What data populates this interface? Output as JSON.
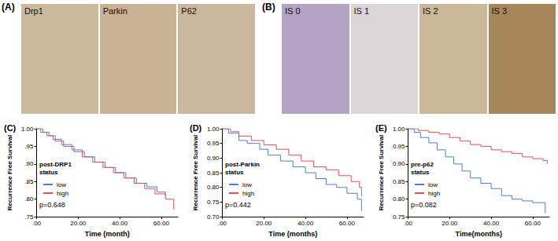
{
  "image_panels": [
    {
      "label": "(A)",
      "images": [
        "Drp1",
        "Parkin",
        "P62"
      ]
    },
    {
      "label": "(B)",
      "images": [
        "IS 0",
        "IS 1",
        "IS 2",
        "IS 3"
      ]
    }
  ],
  "chart_data": [
    {
      "type": "line",
      "label": "(C)",
      "x_label": "Time (month)",
      "y_label": "Recurrence Free Survival",
      "legend_title": [
        "post-DRP1",
        "status"
      ],
      "annotations": [
        "p=0.648"
      ],
      "legend": "left",
      "xlim": [
        0,
        68
      ],
      "xticks": [
        {
          "value": 0,
          "label": ".00"
        },
        {
          "value": 20,
          "label": "20.00"
        },
        {
          "value": 40,
          "label": "40.00"
        },
        {
          "value": 60,
          "label": "60.00"
        }
      ],
      "ylim": [
        0.75,
        1.0
      ],
      "yticks": [
        {
          "value": 0.75,
          "label": ".75"
        },
        {
          "value": 0.8,
          "label": ".80"
        },
        {
          "value": 0.85,
          "label": ".85"
        },
        {
          "value": 0.9,
          "label": ".90"
        },
        {
          "value": 0.95,
          "label": ".95"
        },
        {
          "value": 1.0,
          "label": "1.00"
        }
      ],
      "series": [
        {
          "name": "low",
          "color": "#4a7fd4",
          "line_style": "step",
          "x": [
            0,
            3,
            6,
            9,
            13,
            18,
            23,
            28,
            33,
            38,
            43,
            48,
            53,
            58,
            62
          ],
          "values": [
            1.0,
            0.99,
            0.98,
            0.965,
            0.95,
            0.935,
            0.92,
            0.905,
            0.89,
            0.875,
            0.86,
            0.845,
            0.835,
            0.82,
            0.81
          ]
        },
        {
          "name": "high",
          "color": "#e0505a",
          "line_style": "step",
          "x": [
            0,
            2,
            5,
            8,
            12,
            17,
            22,
            27,
            32,
            37,
            42,
            47,
            52,
            57,
            62,
            66
          ],
          "values": [
            1.0,
            0.99,
            0.98,
            0.97,
            0.955,
            0.94,
            0.92,
            0.905,
            0.89,
            0.875,
            0.86,
            0.845,
            0.83,
            0.815,
            0.8,
            0.77
          ]
        }
      ]
    },
    {
      "type": "line",
      "label": "(D)",
      "x_label": "Time (months)",
      "y_label": "Recurrence Free Survival",
      "legend_title": [
        "post-Parkin",
        "status"
      ],
      "annotations": [
        "p=0.442"
      ],
      "legend": "left",
      "xlim": [
        0,
        68
      ],
      "xticks": [
        {
          "value": 0,
          "label": ".00"
        },
        {
          "value": 20,
          "label": "20.00"
        },
        {
          "value": 40,
          "label": "40.00"
        },
        {
          "value": 60,
          "label": "60.00"
        }
      ],
      "ylim": [
        0.7,
        1.0
      ],
      "yticks": [
        {
          "value": 0.7,
          "label": "0.70"
        },
        {
          "value": 0.75,
          "label": "0.75"
        },
        {
          "value": 0.8,
          "label": "0.80"
        },
        {
          "value": 0.85,
          "label": "0.85"
        },
        {
          "value": 0.9,
          "label": "0.90"
        },
        {
          "value": 0.95,
          "label": "0.95"
        },
        {
          "value": 1.0,
          "label": "1.00"
        }
      ],
      "series": [
        {
          "name": "low",
          "color": "#4a7fd4",
          "line_style": "step",
          "x": [
            0,
            3,
            8,
            12,
            18,
            22,
            28,
            34,
            40,
            45,
            50,
            55,
            60,
            65,
            67
          ],
          "values": [
            1.0,
            0.985,
            0.96,
            0.95,
            0.93,
            0.91,
            0.89,
            0.87,
            0.85,
            0.83,
            0.81,
            0.8,
            0.78,
            0.76,
            0.72
          ]
        },
        {
          "name": "high",
          "color": "#e0505a",
          "line_style": "step",
          "x": [
            0,
            4,
            8,
            14,
            20,
            26,
            32,
            38,
            44,
            50,
            56,
            62,
            66,
            67
          ],
          "values": [
            1.0,
            0.99,
            0.975,
            0.96,
            0.945,
            0.93,
            0.91,
            0.89,
            0.87,
            0.86,
            0.84,
            0.82,
            0.8,
            0.77
          ]
        }
      ]
    },
    {
      "type": "line",
      "label": "(E)",
      "x_label": "Time(months)",
      "y_label": "Recurrence Free Survival",
      "legend_title": [
        "pre-p62",
        "status"
      ],
      "annotations": [
        "p=0.082"
      ],
      "legend": "left",
      "xlim": [
        0,
        68
      ],
      "xticks": [
        {
          "value": 0,
          "label": ".00"
        },
        {
          "value": 20,
          "label": "20.00"
        },
        {
          "value": 40,
          "label": "40.00"
        },
        {
          "value": 60,
          "label": "60.00"
        }
      ],
      "ylim": [
        0.75,
        1.0
      ],
      "yticks": [
        {
          "value": 0.75,
          "label": "0.75"
        },
        {
          "value": 0.8,
          "label": "0.80"
        },
        {
          "value": 0.85,
          "label": "0.85"
        },
        {
          "value": 0.9,
          "label": "0.90"
        },
        {
          "value": 0.95,
          "label": "0.95"
        },
        {
          "value": 1.0,
          "label": "1.00"
        }
      ],
      "series": [
        {
          "name": "low",
          "color": "#4a7fd4",
          "line_style": "step",
          "x": [
            0,
            3,
            6,
            10,
            14,
            18,
            22,
            26,
            30,
            35,
            40,
            45,
            50,
            55,
            60,
            66
          ],
          "values": [
            1.0,
            0.99,
            0.975,
            0.96,
            0.94,
            0.92,
            0.9,
            0.88,
            0.86,
            0.845,
            0.83,
            0.81,
            0.8,
            0.795,
            0.79,
            0.76
          ]
        },
        {
          "name": "high",
          "color": "#e0505a",
          "line_style": "step",
          "x": [
            0,
            5,
            10,
            15,
            20,
            25,
            30,
            35,
            40,
            45,
            50,
            55,
            60,
            65,
            67
          ],
          "values": [
            1.0,
            0.995,
            0.99,
            0.985,
            0.975,
            0.965,
            0.955,
            0.95,
            0.94,
            0.935,
            0.93,
            0.92,
            0.915,
            0.91,
            0.9
          ]
        }
      ]
    }
  ]
}
